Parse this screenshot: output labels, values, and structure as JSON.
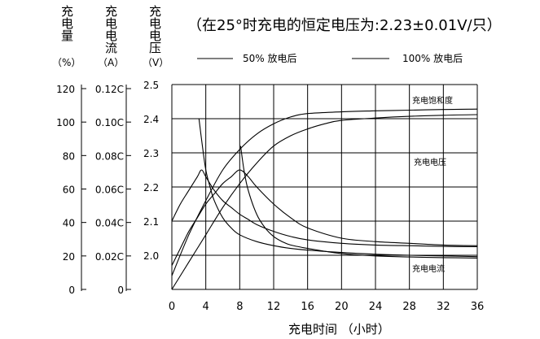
{
  "chart_data": {
    "type": "line",
    "title": "（在25°时充电的恒定电压为:2.23±0.01V/只）",
    "xlabel": "充电时间  （小时）",
    "x_ticks": [
      0,
      4,
      8,
      12,
      16,
      20,
      24,
      28,
      32,
      36
    ],
    "xlim": [
      0,
      36
    ],
    "grid": true,
    "axes": [
      {
        "label": "充电量",
        "unit": "（%）",
        "ticks": [
          "120",
          "100",
          "80",
          "60",
          "40",
          "20",
          "0"
        ]
      },
      {
        "label": "充电电流",
        "unit": "（A）",
        "ticks": [
          "0.12C",
          "0.10C",
          "0.08C",
          "0.06C",
          "0.04C",
          "0.02C",
          "0"
        ]
      },
      {
        "label": "充电电压",
        "unit": "（V）",
        "ticks": [
          "2.5",
          "2.4",
          "2.3",
          "2.2",
          "2.1",
          "2.0"
        ]
      }
    ],
    "y_right_range": [
      1.9,
      2.5
    ],
    "legend": [
      {
        "label": "50% 放电后",
        "style": "solid"
      },
      {
        "label": "100% 放电后",
        "style": "solid"
      }
    ],
    "annotations": [
      "充电饱和度",
      "充电电压",
      "充电电流"
    ],
    "series": [
      {
        "name": "充电饱和度",
        "curve": "50% 放电后",
        "x": [
          0,
          2,
          4,
          6,
          8,
          10,
          12,
          14,
          16,
          20,
          24,
          28,
          32,
          36
        ],
        "y": [
          1.94,
          2.06,
          2.16,
          2.25,
          2.31,
          2.355,
          2.385,
          2.405,
          2.415,
          2.42,
          2.423,
          2.425,
          2.427,
          2.428
        ]
      },
      {
        "name": "充电饱和度",
        "curve": "100% 放电后",
        "x": [
          0,
          2,
          4,
          6,
          8,
          10,
          12,
          14,
          16,
          18,
          20,
          24,
          28,
          32,
          36
        ],
        "y": [
          1.9,
          1.98,
          2.06,
          2.14,
          2.21,
          2.27,
          2.32,
          2.35,
          2.37,
          2.385,
          2.395,
          2.402,
          2.407,
          2.41,
          2.412
        ]
      },
      {
        "name": "充电电压",
        "curve": "50% 放电后",
        "x": [
          0,
          1,
          2,
          3,
          3.5,
          4,
          5,
          6,
          7,
          8,
          9,
          10,
          12,
          14,
          16,
          20,
          24,
          28,
          32,
          36
        ],
        "y": [
          2.1,
          2.15,
          2.19,
          2.23,
          2.25,
          2.23,
          2.19,
          2.16,
          2.14,
          2.12,
          2.105,
          2.09,
          2.07,
          2.055,
          2.045,
          2.035,
          2.03,
          2.028,
          2.026,
          2.025
        ]
      },
      {
        "name": "充电电压",
        "curve": "100% 放电后",
        "x": [
          0,
          1,
          2,
          3,
          4,
          5,
          6,
          7,
          8,
          9,
          10,
          12,
          14,
          16,
          20,
          24,
          28,
          32,
          36
        ],
        "y": [
          1.97,
          2.02,
          2.07,
          2.11,
          2.15,
          2.18,
          2.21,
          2.23,
          2.25,
          2.23,
          2.2,
          2.15,
          2.11,
          2.08,
          2.05,
          2.04,
          2.035,
          2.03,
          2.028
        ]
      },
      {
        "name": "充电电流",
        "curve": "50% 放电后",
        "x": [
          3.2,
          3.6,
          4,
          4.5,
          5,
          6,
          7,
          8,
          10,
          12,
          14,
          16,
          20,
          24,
          28,
          32,
          36
        ],
        "y": [
          2.4,
          2.32,
          2.25,
          2.2,
          2.16,
          2.11,
          2.08,
          2.06,
          2.04,
          2.028,
          2.02,
          2.015,
          2.008,
          2.003,
          2.0,
          1.998,
          1.996
        ]
      },
      {
        "name": "充电电流",
        "curve": "100% 放电后",
        "x": [
          8.1,
          8.5,
          9,
          10,
          11,
          12,
          13,
          14,
          16,
          18,
          20,
          24,
          28,
          32,
          36
        ],
        "y": [
          2.32,
          2.25,
          2.19,
          2.12,
          2.08,
          2.055,
          2.04,
          2.03,
          2.02,
          2.012,
          2.005,
          1.998,
          1.995,
          1.993,
          1.992
        ]
      }
    ]
  }
}
